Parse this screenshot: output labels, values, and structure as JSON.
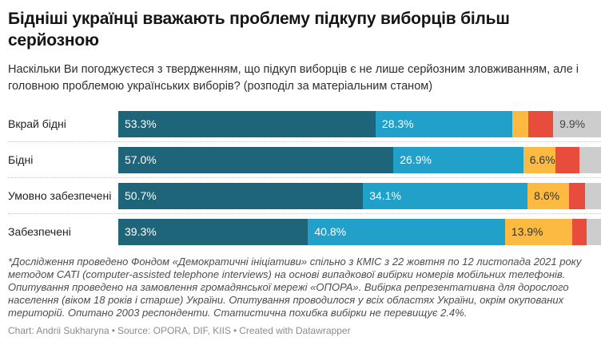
{
  "header": {
    "title": "Бідніші українці вважають проблему підкупу виборців більш серйозною",
    "subtitle": "Наскільки Ви погоджуєтеся з твердженням, що підкуп виборців є не лише серйозним зловживанням, але і головною проблемою українських виборів? (розподіл за матеріальним станом)"
  },
  "chart_data": {
    "type": "bar",
    "variant": "horizontal-stacked",
    "legend_visible": false,
    "xlim": [
      0,
      100
    ],
    "value_suffix": "%",
    "categories": [
      "Вкрай бідні",
      "Бідні",
      "Умовно забезпечені",
      "Забезпечені"
    ],
    "series": [
      {
        "name": "dark-teal",
        "color": "#1e6579",
        "label_color": "#ffffff",
        "values": [
          53.3,
          57.0,
          50.7,
          39.3
        ],
        "labels": [
          "53.3%",
          "57.0%",
          "50.7%",
          "39.3%"
        ]
      },
      {
        "name": "light-blue",
        "color": "#21a0c9",
        "label_color": "#ffffff",
        "values": [
          28.3,
          26.9,
          34.1,
          40.8
        ],
        "labels": [
          "28.3%",
          "26.9%",
          "34.1%",
          "40.8%"
        ]
      },
      {
        "name": "orange",
        "color": "#fcba43",
        "label_color": "#333333",
        "values": [
          3.4,
          6.6,
          8.6,
          13.9
        ],
        "labels": [
          "",
          "6.6%",
          "8.6%",
          "13.9%"
        ]
      },
      {
        "name": "red",
        "color": "#e84c3d",
        "label_color": "#ffffff",
        "values": [
          5.1,
          5.0,
          3.3,
          3.0
        ],
        "labels": [
          "",
          "",
          "",
          ""
        ]
      },
      {
        "name": "gray",
        "color": "#cdcdcd",
        "label_color": "#444444",
        "values": [
          9.9,
          4.5,
          3.3,
          3.0
        ],
        "labels": [
          "9.9%",
          "",
          "",
          ""
        ]
      }
    ]
  },
  "footer": {
    "footnote": "*Дослідження проведено Фондом «Демократичні ініціативи» спільно з КМІС з 22 жовтня по 12 листопада 2021 року методом CATI (computer-assisted telephone interviews) на основі випадкової вибірки номерів мобільних телефонів. Опитування проведено на замовлення громадянської мережі «ОПОРА». Вибірка репрезентативна для дорослого населення (віком 18 років і старше) України. Опитування проводилося у всіх областях України, окрім окупованих територій. Опитано 2003 респонденти. Статистична похибка вибірки не перевищує 2.4%.",
    "credit_chart": "Chart: Andrii Sukharyna",
    "credit_source": "Source: OPORA, DIF, KIIS",
    "credit_tool": "Created with Datawrapper",
    "credit_separator": "•"
  }
}
